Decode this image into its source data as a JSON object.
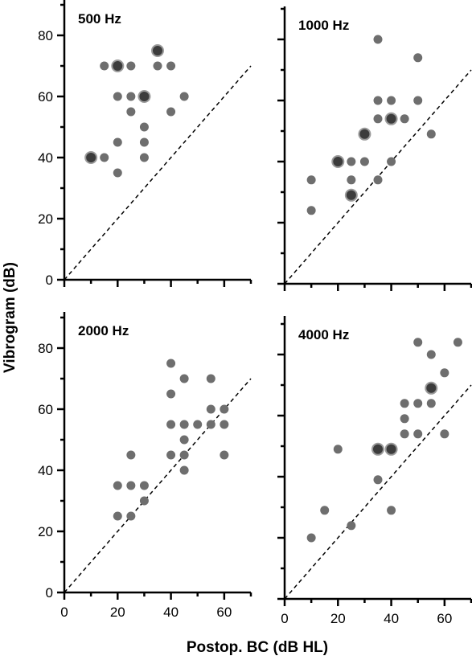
{
  "figure": {
    "xlabel": "Postop. BC (dB HL)",
    "ylabel": "Vibrogram (dB)"
  },
  "chart_data": [
    {
      "type": "scatter",
      "title": "500 Hz",
      "xlim": [
        0,
        70
      ],
      "ylim": [
        0,
        90
      ],
      "xticks": [],
      "yticks": [
        0,
        20,
        40,
        60,
        80
      ],
      "show_x_tick_labels": false,
      "show_y_tick_labels": true,
      "points": [
        {
          "x": 10,
          "y": 40,
          "n": 2
        },
        {
          "x": 15,
          "y": 40,
          "n": 1
        },
        {
          "x": 15,
          "y": 70,
          "n": 1
        },
        {
          "x": 20,
          "y": 70,
          "n": 2
        },
        {
          "x": 25,
          "y": 70,
          "n": 1
        },
        {
          "x": 35,
          "y": 75,
          "n": 2
        },
        {
          "x": 35,
          "y": 70,
          "n": 1
        },
        {
          "x": 40,
          "y": 70,
          "n": 1
        },
        {
          "x": 20,
          "y": 60,
          "n": 1
        },
        {
          "x": 25,
          "y": 60,
          "n": 1
        },
        {
          "x": 30,
          "y": 60,
          "n": 2
        },
        {
          "x": 45,
          "y": 60,
          "n": 1
        },
        {
          "x": 25,
          "y": 55,
          "n": 1
        },
        {
          "x": 40,
          "y": 55,
          "n": 1
        },
        {
          "x": 30,
          "y": 50,
          "n": 1
        },
        {
          "x": 20,
          "y": 45,
          "n": 1
        },
        {
          "x": 30,
          "y": 45,
          "n": 1
        },
        {
          "x": 30,
          "y": 40,
          "n": 1
        },
        {
          "x": 20,
          "y": 35,
          "n": 1
        }
      ]
    },
    {
      "type": "scatter",
      "title": "1000 Hz",
      "xlim": [
        0,
        70
      ],
      "ylim": [
        0,
        90
      ],
      "xticks": [],
      "yticks": [],
      "show_x_tick_labels": false,
      "show_y_tick_labels": false,
      "points": [
        {
          "x": 35,
          "y": 80,
          "n": 1
        },
        {
          "x": 50,
          "y": 74,
          "n": 1
        },
        {
          "x": 35,
          "y": 60,
          "n": 1
        },
        {
          "x": 40,
          "y": 60,
          "n": 1
        },
        {
          "x": 50,
          "y": 60,
          "n": 1
        },
        {
          "x": 35,
          "y": 54,
          "n": 1
        },
        {
          "x": 40,
          "y": 54,
          "n": 2
        },
        {
          "x": 45,
          "y": 54,
          "n": 1
        },
        {
          "x": 30,
          "y": 49,
          "n": 2
        },
        {
          "x": 55,
          "y": 49,
          "n": 1
        },
        {
          "x": 20,
          "y": 40,
          "n": 2
        },
        {
          "x": 25,
          "y": 40,
          "n": 1
        },
        {
          "x": 30,
          "y": 40,
          "n": 1
        },
        {
          "x": 40,
          "y": 40,
          "n": 1
        },
        {
          "x": 10,
          "y": 34,
          "n": 1
        },
        {
          "x": 25,
          "y": 34,
          "n": 1
        },
        {
          "x": 35,
          "y": 34,
          "n": 1
        },
        {
          "x": 25,
          "y": 29,
          "n": 2
        },
        {
          "x": 10,
          "y": 24,
          "n": 1
        }
      ]
    },
    {
      "type": "scatter",
      "title": "2000 Hz",
      "xlim": [
        0,
        70
      ],
      "ylim": [
        0,
        90
      ],
      "xticks": [
        0,
        20,
        40,
        60
      ],
      "yticks": [
        0,
        20,
        40,
        60,
        80
      ],
      "show_x_tick_labels": true,
      "show_y_tick_labels": true,
      "points": [
        {
          "x": 40,
          "y": 75,
          "n": 1
        },
        {
          "x": 45,
          "y": 70,
          "n": 1
        },
        {
          "x": 55,
          "y": 70,
          "n": 1
        },
        {
          "x": 40,
          "y": 65,
          "n": 1
        },
        {
          "x": 55,
          "y": 60,
          "n": 1
        },
        {
          "x": 60,
          "y": 60,
          "n": 1
        },
        {
          "x": 40,
          "y": 55,
          "n": 1
        },
        {
          "x": 45,
          "y": 55,
          "n": 1
        },
        {
          "x": 50,
          "y": 55,
          "n": 1
        },
        {
          "x": 55,
          "y": 55,
          "n": 1
        },
        {
          "x": 60,
          "y": 55,
          "n": 1
        },
        {
          "x": 45,
          "y": 50,
          "n": 1
        },
        {
          "x": 40,
          "y": 45,
          "n": 1
        },
        {
          "x": 45,
          "y": 45,
          "n": 1
        },
        {
          "x": 60,
          "y": 45,
          "n": 1
        },
        {
          "x": 25,
          "y": 45,
          "n": 1
        },
        {
          "x": 45,
          "y": 40,
          "n": 1
        },
        {
          "x": 20,
          "y": 35,
          "n": 1
        },
        {
          "x": 25,
          "y": 35,
          "n": 1
        },
        {
          "x": 30,
          "y": 35,
          "n": 1
        },
        {
          "x": 30,
          "y": 30,
          "n": 1
        },
        {
          "x": 20,
          "y": 25,
          "n": 1
        },
        {
          "x": 25,
          "y": 25,
          "n": 1
        }
      ]
    },
    {
      "type": "scatter",
      "title": "4000 Hz",
      "xlim": [
        0,
        70
      ],
      "ylim": [
        0,
        90
      ],
      "xticks": [
        0,
        20,
        40,
        60
      ],
      "yticks": [],
      "show_x_tick_labels": true,
      "show_y_tick_labels": false,
      "points": [
        {
          "x": 50,
          "y": 84,
          "n": 1
        },
        {
          "x": 65,
          "y": 84,
          "n": 1
        },
        {
          "x": 55,
          "y": 80,
          "n": 1
        },
        {
          "x": 60,
          "y": 74,
          "n": 1
        },
        {
          "x": 55,
          "y": 69,
          "n": 2
        },
        {
          "x": 45,
          "y": 64,
          "n": 1
        },
        {
          "x": 50,
          "y": 64,
          "n": 1
        },
        {
          "x": 55,
          "y": 64,
          "n": 1
        },
        {
          "x": 45,
          "y": 59,
          "n": 1
        },
        {
          "x": 45,
          "y": 54,
          "n": 1
        },
        {
          "x": 50,
          "y": 54,
          "n": 1
        },
        {
          "x": 60,
          "y": 54,
          "n": 1
        },
        {
          "x": 20,
          "y": 49,
          "n": 1
        },
        {
          "x": 35,
          "y": 49,
          "n": 2
        },
        {
          "x": 40,
          "y": 49,
          "n": 2
        },
        {
          "x": 35,
          "y": 39,
          "n": 1
        },
        {
          "x": 15,
          "y": 29,
          "n": 1
        },
        {
          "x": 40,
          "y": 29,
          "n": 1
        },
        {
          "x": 25,
          "y": 24,
          "n": 1
        },
        {
          "x": 10,
          "y": 20,
          "n": 1
        }
      ]
    }
  ],
  "colors": {
    "dot_fill": "#6e6e6e",
    "dot_fill_double": "#3c3c3c",
    "dot_stroke_double": "#9a9a9a",
    "axis": "#000000"
  }
}
